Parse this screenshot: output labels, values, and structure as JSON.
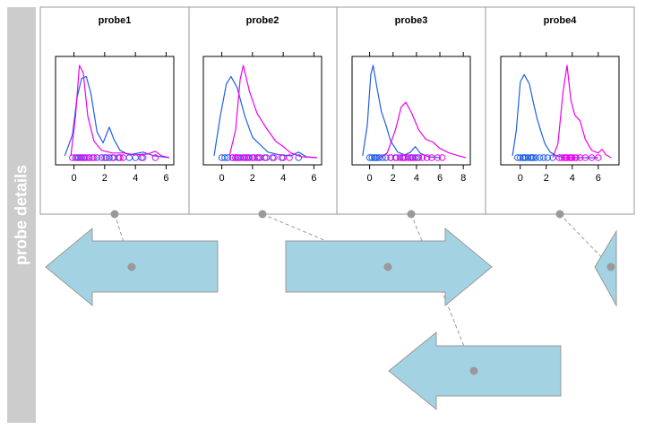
{
  "side_label": "probe details",
  "colors": {
    "sample_a": "#1f5fe6",
    "sample_b": "#ee00ee",
    "arrow_fill": "#a3d2e2",
    "arrow_stroke": "#999999",
    "connector": "#999999",
    "strip_bg": "#cccccc"
  },
  "chart_data": [
    {
      "type": "line",
      "title": "probe1",
      "xlim": [
        -1.2,
        6.5
      ],
      "x_ticks": [
        0,
        2,
        4,
        6
      ],
      "series": [
        {
          "color": "#1f5fe6",
          "curve": [
            [
              -0.6,
              0.02
            ],
            [
              -0.1,
              0.25
            ],
            [
              0.2,
              0.65
            ],
            [
              0.5,
              0.86
            ],
            [
              0.8,
              0.88
            ],
            [
              1.1,
              0.7
            ],
            [
              1.5,
              0.28
            ],
            [
              1.9,
              0.16
            ],
            [
              2.3,
              0.33
            ],
            [
              2.6,
              0.2
            ],
            [
              3.0,
              0.08
            ],
            [
              3.6,
              0.03
            ],
            [
              4.5,
              0.06
            ],
            [
              5.2,
              0.02
            ],
            [
              6.2,
              0.0
            ]
          ],
          "rug": [
            0.1,
            0.3,
            0.5,
            0.7,
            1.0,
            1.3,
            1.8,
            2.1,
            2.3,
            2.6,
            2.9,
            3.6,
            4.0,
            4.4
          ]
        },
        {
          "color": "#ee00ee",
          "curve": [
            [
              -0.2,
              0.02
            ],
            [
              0.1,
              0.45
            ],
            [
              0.35,
              1.0
            ],
            [
              0.6,
              0.92
            ],
            [
              0.9,
              0.45
            ],
            [
              1.3,
              0.18
            ],
            [
              1.8,
              0.08
            ],
            [
              2.5,
              0.05
            ],
            [
              3.2,
              0.05
            ],
            [
              4.0,
              0.03
            ],
            [
              4.8,
              0.04
            ],
            [
              5.3,
              0.07
            ],
            [
              5.7,
              0.02
            ],
            [
              6.2,
              0.0
            ]
          ],
          "rug": [
            -0.1,
            0.2,
            0.4,
            0.6,
            0.8,
            1.0,
            1.2,
            1.5,
            2.0,
            2.5,
            3.0,
            3.2,
            4.5,
            5.3
          ]
        }
      ]
    },
    {
      "type": "line",
      "title": "probe2",
      "xlim": [
        -1.2,
        6.5
      ],
      "x_ticks": [
        0,
        2,
        4,
        6
      ],
      "series": [
        {
          "color": "#1f5fe6",
          "curve": [
            [
              -0.5,
              0.02
            ],
            [
              -0.1,
              0.45
            ],
            [
              0.3,
              0.8
            ],
            [
              0.6,
              0.88
            ],
            [
              1.0,
              0.76
            ],
            [
              1.5,
              0.45
            ],
            [
              2.0,
              0.22
            ],
            [
              2.5,
              0.14
            ],
            [
              3.0,
              0.06
            ],
            [
              3.8,
              0.03
            ],
            [
              4.5,
              0.02
            ],
            [
              5.0,
              0.06
            ],
            [
              5.5,
              0.01
            ],
            [
              6.2,
              0.0
            ]
          ],
          "rug": [
            0.0,
            0.2,
            0.4,
            0.7,
            0.9,
            1.1,
            1.4,
            1.7,
            2.0,
            2.4,
            2.8,
            3.3,
            4.0,
            5.0
          ]
        },
        {
          "color": "#ee00ee",
          "curve": [
            [
              0.5,
              0.02
            ],
            [
              0.9,
              0.3
            ],
            [
              1.2,
              0.85
            ],
            [
              1.4,
              1.0
            ],
            [
              1.8,
              0.72
            ],
            [
              2.3,
              0.48
            ],
            [
              2.9,
              0.32
            ],
            [
              3.5,
              0.18
            ],
            [
              4.0,
              0.12
            ],
            [
              4.5,
              0.05
            ],
            [
              5.2,
              0.01
            ],
            [
              6.2,
              0.0
            ]
          ],
          "rug": [
            0.9,
            1.2,
            1.5,
            1.8,
            2.1,
            2.5,
            2.9,
            3.4,
            3.9,
            4.4,
            0.7,
            1.0,
            1.6,
            2.3
          ]
        }
      ]
    },
    {
      "type": "line",
      "title": "probe3",
      "xlim": [
        -1.5,
        8.6
      ],
      "x_ticks": [
        0,
        2,
        4,
        6,
        8
      ],
      "series": [
        {
          "color": "#1f5fe6",
          "curve": [
            [
              -0.6,
              0.02
            ],
            [
              -0.2,
              0.35
            ],
            [
              0.1,
              0.9
            ],
            [
              0.3,
              1.0
            ],
            [
              0.6,
              0.78
            ],
            [
              1.0,
              0.5
            ],
            [
              1.4,
              0.35
            ],
            [
              1.8,
              0.18
            ],
            [
              2.4,
              0.06
            ],
            [
              3.0,
              0.03
            ],
            [
              3.5,
              0.06
            ],
            [
              3.9,
              0.12
            ],
            [
              4.3,
              0.05
            ],
            [
              5.0,
              0.01
            ],
            [
              6.0,
              0.0
            ]
          ],
          "rug": [
            0.0,
            0.2,
            0.4,
            0.6,
            0.8,
            1.1,
            1.4,
            1.8,
            2.3,
            2.9,
            3.6,
            3.9,
            4.2,
            0.5
          ]
        },
        {
          "color": "#ee00ee",
          "curve": [
            [
              0.9,
              0.0
            ],
            [
              1.5,
              0.05
            ],
            [
              2.2,
              0.3
            ],
            [
              2.7,
              0.55
            ],
            [
              3.1,
              0.6
            ],
            [
              3.6,
              0.48
            ],
            [
              4.2,
              0.3
            ],
            [
              4.8,
              0.2
            ],
            [
              5.4,
              0.17
            ],
            [
              6.0,
              0.1
            ],
            [
              6.8,
              0.05
            ],
            [
              7.6,
              0.02
            ],
            [
              8.2,
              0.0
            ]
          ],
          "rug": [
            1.8,
            2.2,
            2.6,
            3.0,
            3.3,
            3.7,
            4.1,
            4.5,
            4.9,
            5.3,
            5.8,
            6.2,
            3.5,
            2.8
          ]
        }
      ]
    },
    {
      "type": "line",
      "title": "probe4",
      "xlim": [
        -1.5,
        7.6
      ],
      "x_ticks": [
        0,
        2,
        4,
        6
      ],
      "series": [
        {
          "color": "#1f5fe6",
          "curve": [
            [
              -0.6,
              0.02
            ],
            [
              -0.3,
              0.3
            ],
            [
              0.0,
              0.82
            ],
            [
              0.3,
              0.9
            ],
            [
              0.7,
              0.8
            ],
            [
              1.0,
              0.6
            ],
            [
              1.3,
              0.42
            ],
            [
              1.6,
              0.28
            ],
            [
              1.9,
              0.15
            ],
            [
              2.3,
              0.06
            ],
            [
              2.8,
              0.02
            ],
            [
              3.4,
              0.0
            ],
            [
              6.0,
              0.0
            ]
          ],
          "rug": [
            -0.2,
            0.0,
            0.2,
            0.4,
            0.6,
            0.8,
            1.0,
            1.2,
            1.5,
            1.8,
            2.1,
            2.5,
            0.3,
            0.9
          ]
        },
        {
          "color": "#ee00ee",
          "curve": [
            [
              2.5,
              0.0
            ],
            [
              2.9,
              0.15
            ],
            [
              3.3,
              0.72
            ],
            [
              3.6,
              1.0
            ],
            [
              3.9,
              0.62
            ],
            [
              4.2,
              0.46
            ],
            [
              4.6,
              0.4
            ],
            [
              5.0,
              0.2
            ],
            [
              5.5,
              0.08
            ],
            [
              6.0,
              0.05
            ],
            [
              6.3,
              0.09
            ],
            [
              6.6,
              0.03
            ],
            [
              7.0,
              0.0
            ]
          ],
          "rug": [
            3.0,
            3.2,
            3.4,
            3.6,
            3.8,
            4.0,
            4.3,
            4.6,
            5.0,
            5.5,
            6.0,
            3.5,
            3.9,
            4.2
          ]
        }
      ]
    }
  ]
}
